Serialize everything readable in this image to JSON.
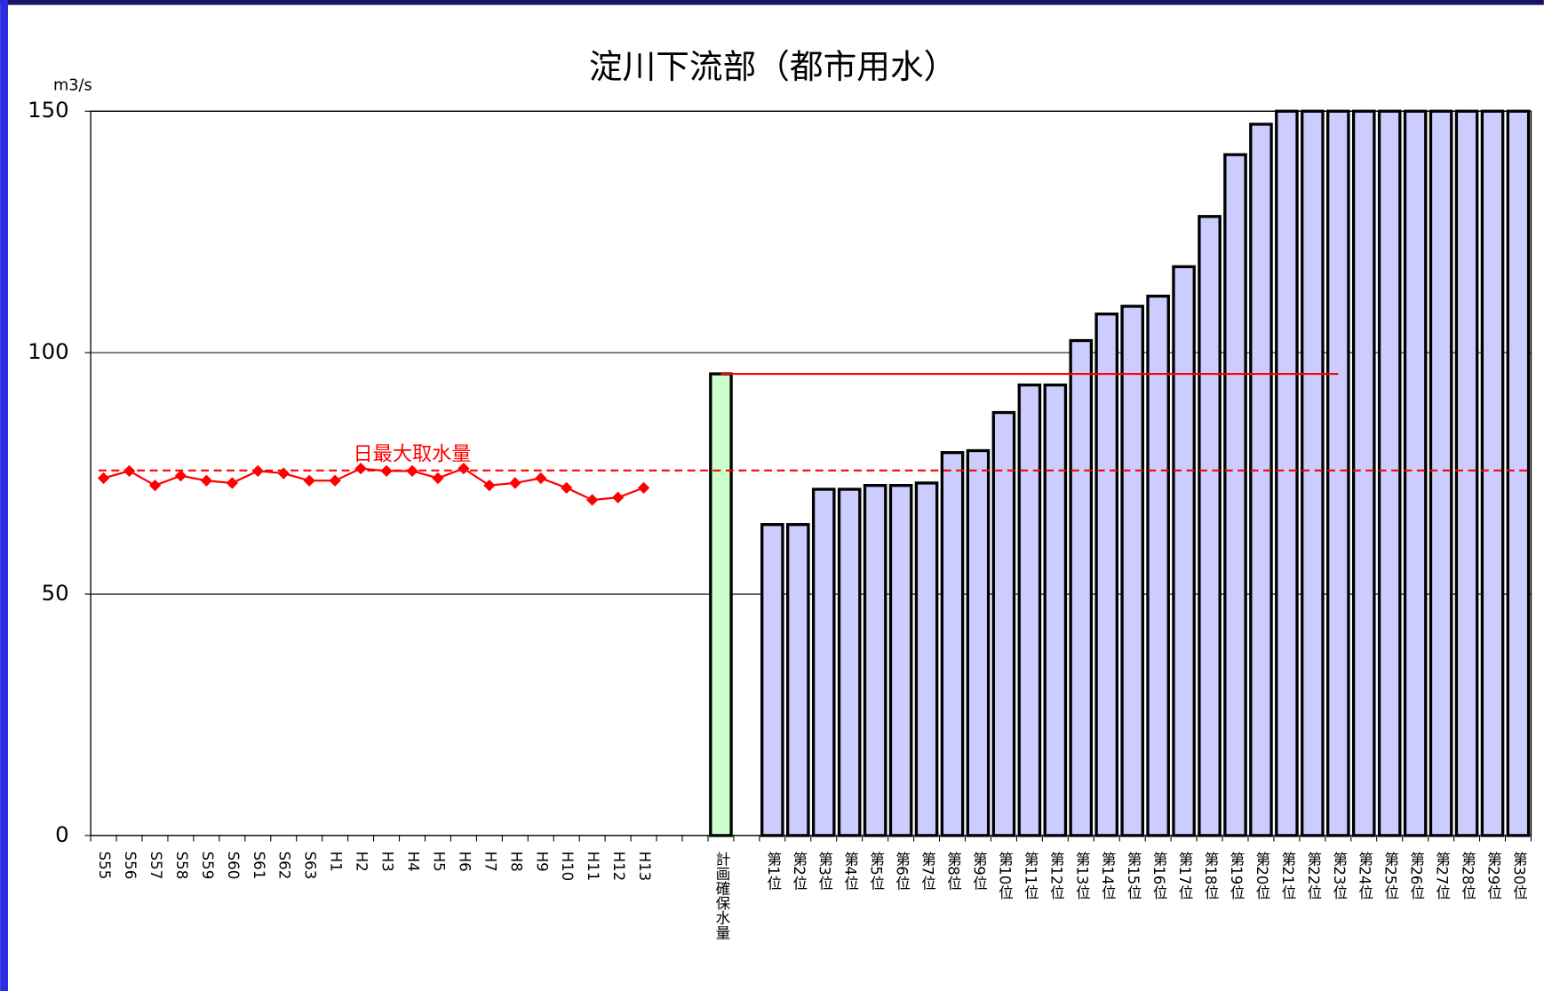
{
  "chart_data": {
    "type": "bar",
    "title": "淀川下流部（都市用水）",
    "y_unit": "m3/s",
    "categories": [
      "S55",
      "S56",
      "S57",
      "S58",
      "S59",
      "S60",
      "S61",
      "S62",
      "S63",
      "H1",
      "H2",
      "H3",
      "H4",
      "H5",
      "H6",
      "H7",
      "H8",
      "H9",
      "H10",
      "H11",
      "H12",
      "H13",
      null,
      null,
      "計画確保水量",
      null,
      "第1位",
      "第2位",
      "第3位",
      "第4位",
      "第5位",
      "第6位",
      "第7位",
      "第8位",
      "第9位",
      "第10位",
      "第11位",
      "第12位",
      "第13位",
      "第14位",
      "第15位",
      "第16位",
      "第17位",
      "第18位",
      "第19位",
      "第20位",
      "第21位",
      "第22位",
      "第23位",
      "第24位",
      "第25位",
      "第26位",
      "第27位",
      "第28位",
      "第29位",
      "第30位"
    ],
    "series": [
      {
        "type": "line",
        "color": "#ff0000",
        "values": [
          74,
          75.5,
          72.5,
          74.5,
          73.5,
          73,
          75.5,
          75,
          73.5,
          73.5,
          76,
          75.5,
          75.5,
          74,
          76,
          72.5,
          73,
          74,
          72,
          69.5,
          70,
          72,
          null,
          null,
          null,
          null,
          null,
          null,
          null,
          null,
          null,
          null,
          null,
          null,
          null,
          null,
          null,
          null,
          null,
          null,
          null,
          null,
          null,
          null,
          null,
          null,
          null,
          null,
          null,
          null,
          null,
          null,
          null,
          null,
          null,
          null
        ]
      },
      {
        "type": "bar",
        "color": "#ccffcc",
        "values": [
          null,
          null,
          null,
          null,
          null,
          null,
          null,
          null,
          null,
          null,
          null,
          null,
          null,
          null,
          null,
          null,
          null,
          null,
          null,
          null,
          null,
          null,
          null,
          null,
          95.6,
          null,
          null,
          null,
          null,
          null,
          null,
          null,
          null,
          null,
          null,
          null,
          null,
          null,
          null,
          null,
          null,
          null,
          null,
          null,
          null,
          null,
          null,
          null,
          null,
          null,
          null,
          null,
          null,
          null,
          null,
          null
        ]
      },
      {
        "type": "bar",
        "color": "#ccccff",
        "values": [
          null,
          null,
          null,
          null,
          null,
          null,
          null,
          null,
          null,
          null,
          null,
          null,
          null,
          null,
          null,
          null,
          null,
          null,
          null,
          null,
          null,
          null,
          null,
          null,
          null,
          null,
          64.4,
          64.4,
          71.7,
          71.7,
          72.5,
          72.5,
          73,
          79.3,
          79.7,
          87.6,
          93.3,
          93.3,
          102.5,
          108,
          109.6,
          111.7,
          117.8,
          128.2,
          141,
          147.3,
          150,
          150,
          150,
          150,
          150,
          150,
          150,
          150,
          150,
          150
        ]
      }
    ],
    "reference_line": {
      "label": "日最大取水量",
      "value": 75.6,
      "color": "#ff0000",
      "style": "dashed"
    },
    "plan_line_color": "#ff0000",
    "ylim": [
      0,
      150
    ],
    "yticks": [
      0,
      50,
      100,
      150
    ],
    "grid": true
  }
}
